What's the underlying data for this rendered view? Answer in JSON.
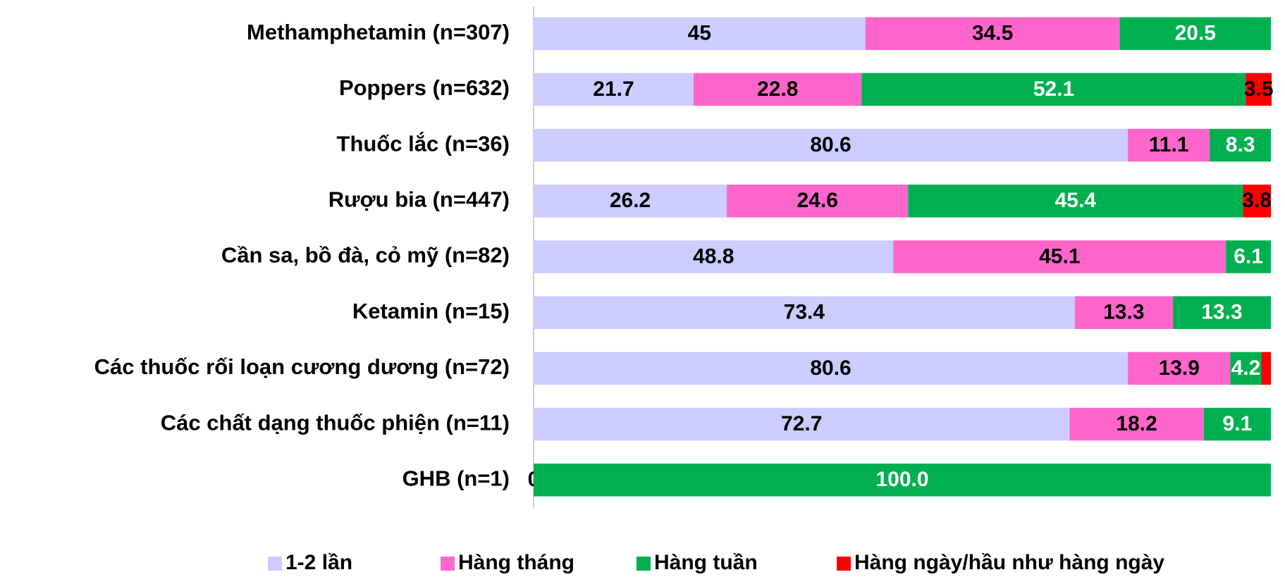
{
  "chart_data": {
    "type": "stacked_bar_horizontal",
    "categories": [
      "Methamphetamin (n=307)",
      "Poppers (n=632)",
      "Thuốc lắc (n=36)",
      "Rượu bia (n=447)",
      "Cần sa, bồ đà, cỏ mỹ (n=82)",
      "Ketamin (n=15)",
      "Các thuốc rối loạn cương dương (n=72)",
      "Các chất dạng thuốc phiện (n=11)",
      "GHB (n=1)"
    ],
    "series": [
      {
        "name": "1-2 lần",
        "color": "#ccccff",
        "values": [
          45,
          21.7,
          80.6,
          26.2,
          48.8,
          73.4,
          80.6,
          72.7,
          0
        ]
      },
      {
        "name": "Hàng tháng",
        "color": "#ff66cc",
        "values": [
          34.5,
          22.8,
          11.1,
          24.6,
          45.1,
          13.3,
          13.9,
          18.2,
          null
        ]
      },
      {
        "name": "Hàng tuần",
        "color": "#00b050",
        "values": [
          20.5,
          52.1,
          8.3,
          45.4,
          6.1,
          13.3,
          4.2,
          9.1,
          100
        ],
        "value_labels": [
          "20.5",
          "52.1",
          "8.3",
          "45.4",
          "6.1",
          "13.3",
          "4.2",
          "9.1",
          "100.0"
        ]
      },
      {
        "name": "Hàng ngày/hầu như hàng ngày",
        "color": "#ff0000",
        "values": [
          null,
          3.5,
          null,
          3.8,
          null,
          null,
          1.3,
          null,
          null
        ],
        "value_labels": [
          null,
          "3.5",
          null,
          "3.8",
          null,
          null,
          null,
          null,
          null
        ]
      }
    ],
    "xlim": [
      0,
      100
    ],
    "legend": "bottom"
  }
}
